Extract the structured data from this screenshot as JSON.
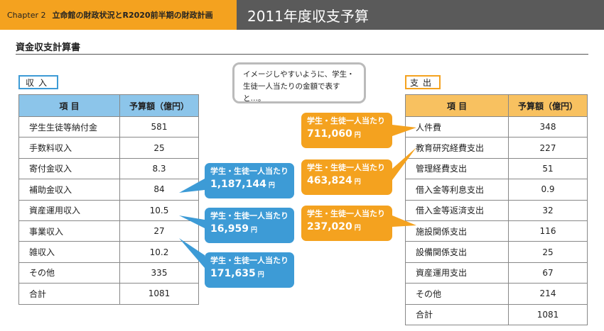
{
  "header": {
    "chapter": "Chapter 2",
    "subtitle": "立命館の財政状況とR2020前半期の財政計画",
    "title": "2011年度収支予算"
  },
  "section_title": "資金収支計算書",
  "speech": {
    "text": "イメージしやすいように、学生・生徒一人当たりの金額で表すと…。"
  },
  "income": {
    "tag": "収入",
    "headers": [
      "項 目",
      "予算額（億円）"
    ],
    "rows": [
      {
        "item": "学生生徒等納付金",
        "value": "581"
      },
      {
        "item": "手数料収入",
        "value": "25"
      },
      {
        "item": "寄付金収入",
        "value": "8.3"
      },
      {
        "item": "補助金収入",
        "value": "84"
      },
      {
        "item": "資産運用収入",
        "value": "10.5"
      },
      {
        "item": "事業収入",
        "value": "27"
      },
      {
        "item": "雑収入",
        "value": "10.2"
      },
      {
        "item": "その他",
        "value": "335"
      },
      {
        "item": "合計",
        "value": "1081"
      }
    ]
  },
  "expense": {
    "tag": "支出",
    "headers": [
      "項 目",
      "予算額（億円）"
    ],
    "rows": [
      {
        "item": "人件費",
        "value": "348"
      },
      {
        "item": "教育研究経費支出",
        "value": "227"
      },
      {
        "item": "管理経費支出",
        "value": "51"
      },
      {
        "item": "借入金等利息支出",
        "value": "0.9"
      },
      {
        "item": "借入金等返済支出",
        "value": "32"
      },
      {
        "item": "施設関係支出",
        "value": "116"
      },
      {
        "item": "設備関係支出",
        "value": "25"
      },
      {
        "item": "資産運用支出",
        "value": "67"
      },
      {
        "item": "その他",
        "value": "214"
      },
      {
        "item": "合計",
        "value": "1081"
      }
    ]
  },
  "callouts": {
    "label": "学生・生徒一人当たり",
    "unit": "円",
    "blue": [
      "1,187,144",
      "16,959",
      "171,635"
    ],
    "orange": [
      "711,060",
      "463,824",
      "237,020"
    ]
  },
  "colors": {
    "orange": "#f4a21f",
    "blue": "#3d9bd6",
    "header_gray": "#5a5a5a"
  }
}
